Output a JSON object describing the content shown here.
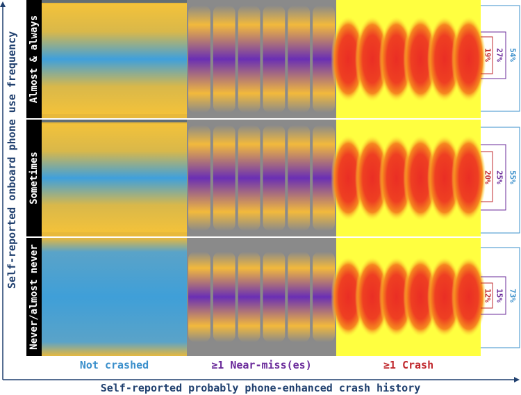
{
  "chart_data": {
    "type": "heatmap",
    "x_axis_title": "Self-reported probably phone-enhanced crash history",
    "y_axis_title": "Self-reported onboard phone use frequency",
    "categories": [
      "Not crashed",
      "≥1 Near-miss(es)",
      "≥1 Crash"
    ],
    "category_colors": [
      "#3a8fcb",
      "#6a2a9a",
      "#c0282d"
    ],
    "rows": [
      {
        "label": "Almost & always",
        "crash_pct": "19%",
        "near_miss_pct": "27%",
        "not_crashed_pct": "54%"
      },
      {
        "label": "Sometimes",
        "crash_pct": "20%",
        "near_miss_pct": "25%",
        "not_crashed_pct": "55%"
      },
      {
        "label": "Never/almost never",
        "crash_pct": "12%",
        "near_miss_pct": "15%",
        "not_crashed_pct": "73%"
      }
    ]
  }
}
